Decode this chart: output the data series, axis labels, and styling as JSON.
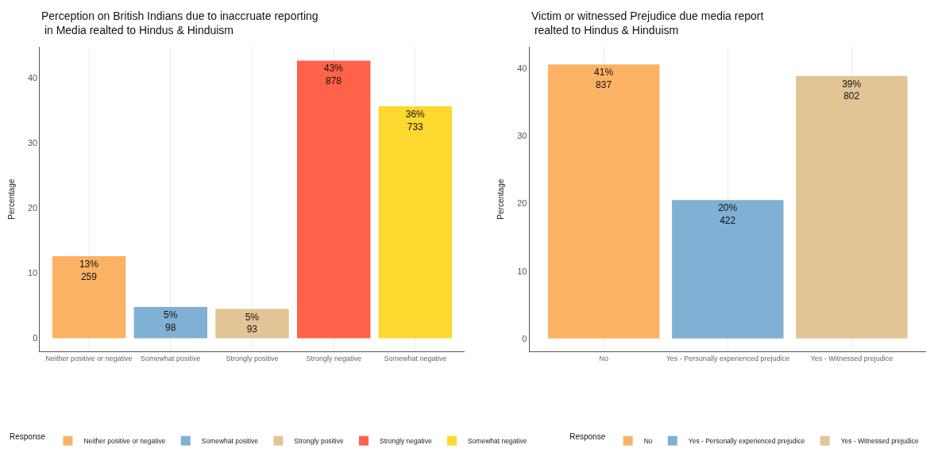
{
  "chart_data": [
    {
      "type": "bar",
      "title": "Perception on British Indians due to inaccruate reporting\n in Media realted to Hindus & Hinduism",
      "ylabel": "Percentage",
      "legend_title": "Response",
      "categories": [
        "Neither positive or negative",
        "Somewhat positive",
        "Strongly positive",
        "Strongly negative",
        "Somewhat negative"
      ],
      "series": [
        {
          "name": "Neither positive or negative",
          "color": "#fbb264",
          "values": [
            12.6,
            null,
            null,
            null,
            null
          ],
          "value_labels": [
            "13%\n259",
            null,
            null,
            null,
            null
          ]
        },
        {
          "name": "Somewhat positive",
          "color": "#80b0d3",
          "values": [
            null,
            4.8,
            null,
            null,
            null
          ],
          "value_labels": [
            null,
            "5%\n98",
            null,
            null,
            null
          ]
        },
        {
          "name": "Strongly positive",
          "color": "#e3c495",
          "values": [
            null,
            null,
            4.5,
            null,
            null
          ],
          "value_labels": [
            null,
            null,
            "5%\n93",
            null,
            null
          ]
        },
        {
          "name": "Strongly negative",
          "color": "#fe6248",
          "values": [
            null,
            null,
            null,
            42.6,
            null
          ],
          "value_labels": [
            null,
            null,
            null,
            "43%\n878",
            null
          ]
        },
        {
          "name": "Somewhat negative",
          "color": "#fdd82e",
          "values": [
            null,
            null,
            null,
            null,
            35.6
          ],
          "value_labels": [
            null,
            null,
            null,
            null,
            "36%\n733"
          ]
        }
      ],
      "ylim": [
        -2,
        44.7
      ],
      "yticks": [
        0,
        10,
        20,
        30,
        40
      ],
      "grid": "x",
      "legend": "bottom"
    },
    {
      "type": "bar",
      "title": "Victim or witnessed Prejudice due media report\n realted to Hindus & Hinduism",
      "ylabel": "Percentage",
      "legend_title": "Response",
      "categories": [
        "No",
        "Yes - Personally experienced prejudice",
        "Yes - Witnessed prejudice"
      ],
      "series": [
        {
          "name": "No",
          "color": "#fbb264",
          "values": [
            40.6,
            null,
            null
          ],
          "value_labels": [
            "41%\n837",
            null,
            null
          ]
        },
        {
          "name": "Yes - Personally experienced prejudice",
          "color": "#80b0d3",
          "values": [
            null,
            20.5,
            null
          ],
          "value_labels": [
            null,
            "20%\n422",
            null
          ]
        },
        {
          "name": "Yes - Witnessed prejudice",
          "color": "#e3c495",
          "values": [
            null,
            null,
            38.9
          ],
          "value_labels": [
            null,
            null,
            "39%\n802"
          ]
        }
      ],
      "ylim": [
        -1.9,
        43.2
      ],
      "yticks": [
        0,
        10,
        20,
        30,
        40
      ],
      "grid": "x",
      "legend": "bottom"
    }
  ]
}
